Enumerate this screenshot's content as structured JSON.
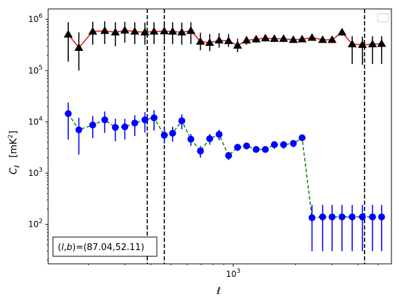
{
  "chart_data": {
    "type": "line",
    "title": "",
    "xlabel": "ℓ",
    "ylabel_main": "C",
    "ylabel_sub": "ℓ",
    "ylabel_unit": "[mK",
    "ylabel_unit_sup": "2",
    "ylabel_unit_close": "]",
    "xscale": "log",
    "yscale": "log",
    "xlim": [
      128,
      5800
    ],
    "ylim": [
      17,
      1600000
    ],
    "grid": false,
    "legend": "top-right (empty)",
    "x_major_ticks": [
      {
        "value": 1000,
        "base": "10",
        "exp": "3"
      }
    ],
    "y_major_ticks": [
      {
        "value": 100,
        "base": "10",
        "exp": "2"
      },
      {
        "value": 1000,
        "base": "10",
        "exp": "3"
      },
      {
        "value": 10000,
        "base": "10",
        "exp": "4"
      },
      {
        "value": 100000,
        "base": "10",
        "exp": "5"
      },
      {
        "value": 1000000,
        "base": "10",
        "exp": "6"
      }
    ],
    "vlines": [
      385,
      465,
      4300
    ],
    "annotation": "(l,b)=(87.04,52.11)",
    "annotation_parts": {
      "l": "l",
      "b": "b",
      "values": "=(87.04,52.11)"
    },
    "series": [
      {
        "color": "#ff0000",
        "marker_color": "#000000",
        "marker": "triangle",
        "line_style": "solid",
        "x": [
          160,
          180,
          210,
          240,
          270,
          300,
          335,
          375,
          415,
          465,
          510,
          565,
          625,
          695,
          770,
          855,
          950,
          1050,
          1160,
          1290,
          1430,
          1580,
          1750,
          1950,
          2150,
          2400,
          2700,
          3000,
          3350,
          3750,
          4200,
          4700,
          5200
        ],
        "y": [
          510000,
          280000,
          580000,
          600000,
          560000,
          610000,
          580000,
          560000,
          580000,
          590000,
          580000,
          560000,
          600000,
          370000,
          350000,
          390000,
          380000,
          310000,
          390000,
          410000,
          430000,
          420000,
          420000,
          400000,
          410000,
          440000,
          400000,
          400000,
          560000,
          330000,
          320000,
          330000,
          335000
        ],
        "yerr_low": [
          150000,
          100000,
          320000,
          330000,
          300000,
          350000,
          330000,
          320000,
          330000,
          330000,
          330000,
          320000,
          330000,
          250000,
          240000,
          280000,
          290000,
          230000,
          320000,
          350000,
          370000,
          360000,
          360000,
          350000,
          360000,
          390000,
          360000,
          360000,
          480000,
          135000,
          130000,
          135000,
          135000
        ],
        "yerr_high": [
          880000,
          560000,
          900000,
          920000,
          880000,
          900000,
          880000,
          870000,
          880000,
          890000,
          880000,
          870000,
          880000,
          550000,
          520000,
          540000,
          520000,
          420000,
          470000,
          480000,
          500000,
          480000,
          480000,
          460000,
          470000,
          500000,
          450000,
          450000,
          640000,
          470000,
          460000,
          470000,
          470000
        ]
      },
      {
        "color": "#008000",
        "marker_color": "#0000ff",
        "marker": "circle",
        "line_style": "dashed",
        "x": [
          160,
          180,
          210,
          240,
          270,
          300,
          335,
          375,
          415,
          465,
          510,
          565,
          625,
          695,
          770,
          855,
          950,
          1050,
          1160,
          1290,
          1430,
          1580,
          1750,
          1950,
          2150,
          2400,
          2700,
          3000,
          3350,
          3750,
          4200,
          4700,
          5200
        ],
        "y": [
          14500,
          7000,
          8700,
          11000,
          7800,
          8000,
          9500,
          11000,
          12000,
          5500,
          6000,
          10500,
          4600,
          2700,
          4700,
          5700,
          2200,
          3200,
          3400,
          2900,
          2900,
          3600,
          3600,
          3800,
          4900,
          135,
          140,
          140,
          140,
          140,
          140,
          140,
          140
        ],
        "yerr_low": [
          4500,
          2300,
          4800,
          6100,
          4200,
          4500,
          5300,
          6200,
          6800,
          3800,
          4100,
          7200,
          3400,
          2000,
          3600,
          4400,
          1800,
          2700,
          2900,
          2500,
          2500,
          3000,
          3000,
          3200,
          4200,
          30,
          30,
          30,
          30,
          30,
          30,
          30,
          30
        ],
        "yerr_high": [
          24000,
          12000,
          13000,
          16000,
          11500,
          11500,
          13500,
          15500,
          17000,
          7200,
          8000,
          14000,
          5800,
          3400,
          5800,
          7000,
          2600,
          3700,
          3900,
          3300,
          3300,
          4200,
          4200,
          4400,
          5600,
          240,
          240,
          240,
          240,
          240,
          240,
          240,
          240
        ]
      }
    ]
  }
}
